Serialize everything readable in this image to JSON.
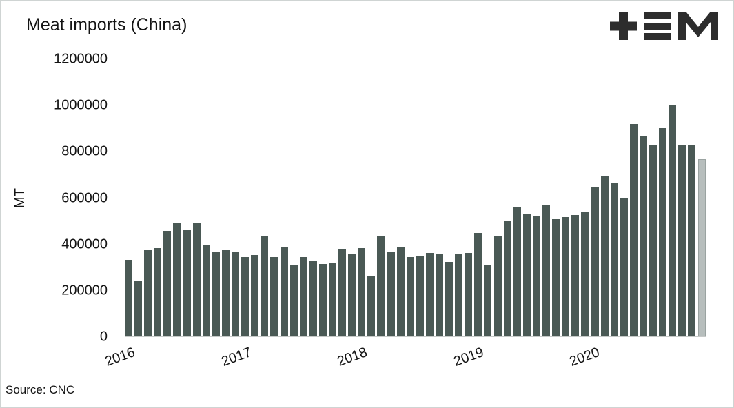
{
  "header": {
    "title": "Meat imports (China)",
    "logo": "plus-three-bars-M brand mark",
    "logo_color": "#2d2d2d"
  },
  "footer": {
    "source": "Source: CNC"
  },
  "chart_data": {
    "type": "bar",
    "title": "Meat imports (China)",
    "xlabel": "",
    "ylabel": "MT",
    "ylim": [
      0,
      1200000
    ],
    "yticks": [
      0,
      200000,
      400000,
      600000,
      800000,
      1000000,
      1200000
    ],
    "grid": false,
    "legend": null,
    "bar_color": "#4a5955",
    "partial_bar_color": "#b7bebd",
    "partial_last_bar": true,
    "year_ticks": [
      {
        "label": "2016",
        "index": 0
      },
      {
        "label": "2017",
        "index": 12
      },
      {
        "label": "2018",
        "index": 24
      },
      {
        "label": "2019",
        "index": 36
      },
      {
        "label": "2020",
        "index": 48
      }
    ],
    "x": [
      "2016-01",
      "2016-02",
      "2016-03",
      "2016-04",
      "2016-05",
      "2016-06",
      "2016-07",
      "2016-08",
      "2016-09",
      "2016-10",
      "2016-11",
      "2016-12",
      "2017-01",
      "2017-02",
      "2017-03",
      "2017-04",
      "2017-05",
      "2017-06",
      "2017-07",
      "2017-08",
      "2017-09",
      "2017-10",
      "2017-11",
      "2017-12",
      "2018-01",
      "2018-02",
      "2018-03",
      "2018-04",
      "2018-05",
      "2018-06",
      "2018-07",
      "2018-08",
      "2018-09",
      "2018-10",
      "2018-11",
      "2018-12",
      "2019-01",
      "2019-02",
      "2019-03",
      "2019-04",
      "2019-05",
      "2019-06",
      "2019-07",
      "2019-08",
      "2019-09",
      "2019-10",
      "2019-11",
      "2019-12",
      "2020-01",
      "2020-02",
      "2020-03",
      "2020-04",
      "2020-05",
      "2020-06",
      "2020-07",
      "2020-08",
      "2020-09",
      "2020-10",
      "2020-11",
      "2020-12"
    ],
    "values": [
      330000,
      235000,
      370000,
      380000,
      455000,
      490000,
      462000,
      487000,
      396000,
      364000,
      370000,
      366000,
      340000,
      351000,
      430000,
      341000,
      386000,
      306000,
      340000,
      324000,
      312000,
      316000,
      378000,
      355000,
      380000,
      260000,
      430000,
      365000,
      387000,
      340000,
      346000,
      360000,
      356000,
      321000,
      355000,
      360000,
      445000,
      304000,
      430000,
      500000,
      558000,
      530000,
      521000,
      565000,
      506000,
      515000,
      524000,
      535000,
      645000,
      695000,
      660000,
      600000,
      920000,
      865000,
      825000,
      900000,
      1000000,
      830000,
      830000,
      765000
    ]
  }
}
